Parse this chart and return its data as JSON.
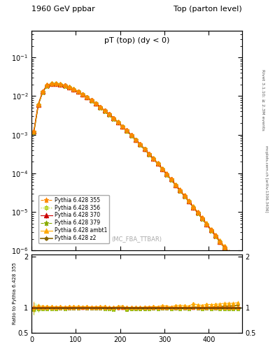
{
  "title_left": "1960 GeV ppbar",
  "title_right": "Top (parton level)",
  "plot_title": "pT (top) (dy < 0)",
  "watermark": "(MC_FBA_TTBAR)",
  "right_label": "Rivet 3.1.10; ≥ 2.3M events",
  "arxiv_label": "mcplots.cern.ch [arXiv:1306.3436]",
  "ylabel_ratio": "Ratio to Pythia 6.428 355",
  "xlim": [
    0,
    475
  ],
  "ylim_main": [
    1e-06,
    0.5
  ],
  "ylim_ratio": [
    0.5,
    2.05
  ],
  "series": [
    {
      "label": "Pythia 6.428 355",
      "color": "#ff8800",
      "marker": "*",
      "linestyle": "--",
      "linewidth": 0.8,
      "x": [
        5,
        15,
        25,
        35,
        45,
        55,
        65,
        75,
        85,
        95,
        105,
        115,
        125,
        135,
        145,
        155,
        165,
        175,
        185,
        195,
        205,
        215,
        225,
        235,
        245,
        255,
        265,
        275,
        285,
        295,
        305,
        315,
        325,
        335,
        345,
        355,
        365,
        375,
        385,
        395,
        405,
        415,
        425,
        435,
        445,
        455,
        465
      ],
      "y": [
        0.0012,
        0.006,
        0.013,
        0.019,
        0.021,
        0.021,
        0.02,
        0.019,
        0.017,
        0.015,
        0.013,
        0.011,
        0.0093,
        0.0078,
        0.0064,
        0.0052,
        0.0042,
        0.0034,
        0.0027,
        0.0021,
        0.0016,
        0.0013,
        0.00099,
        0.00075,
        0.00057,
        0.00043,
        0.00032,
        0.00024,
        0.00018,
        0.00013,
        9.5e-05,
        7e-05,
        5e-05,
        3.6e-05,
        2.6e-05,
        1.9e-05,
        1.3e-05,
        9.5e-06,
        6.8e-06,
        4.8e-06,
        3.4e-06,
        2.4e-06,
        1.7e-06,
        1.2e-06,
        8.5e-07,
        6e-07,
        4.2e-07
      ],
      "yerr": [
        8e-05,
        0.0002,
        0.0003,
        0.0004,
        0.0004,
        0.0004,
        0.0003,
        0.0003,
        0.0003,
        0.0002,
        0.0002,
        0.0002,
        0.00015,
        0.00012,
        0.0001,
        8e-05,
        7e-05,
        5e-05,
        4e-05,
        3.5e-05,
        2.5e-05,
        2e-05,
        1.5e-05,
        1.2e-05,
        9e-06,
        7e-06,
        5e-06,
        4e-06,
        3e-06,
        2.2e-06,
        1.6e-06,
        1.2e-06,
        8e-07,
        6e-07,
        4.5e-07,
        3.3e-07,
        2.5e-07,
        1.8e-07,
        1.3e-07,
        9e-08,
        6.5e-08,
        4.7e-08,
        3.4e-08,
        2.5e-08,
        1.8e-08,
        1.3e-08,
        9e-09
      ]
    },
    {
      "label": "Pythia 6.428 356",
      "color": "#aacc00",
      "marker": "s",
      "linestyle": ":",
      "linewidth": 0.8,
      "x": [
        5,
        15,
        25,
        35,
        45,
        55,
        65,
        75,
        85,
        95,
        105,
        115,
        125,
        135,
        145,
        155,
        165,
        175,
        185,
        195,
        205,
        215,
        225,
        235,
        245,
        255,
        265,
        275,
        285,
        295,
        305,
        315,
        325,
        335,
        345,
        355,
        365,
        375,
        385,
        395,
        405,
        415,
        425,
        435,
        445,
        455,
        465
      ],
      "y": [
        0.00115,
        0.0058,
        0.0126,
        0.0185,
        0.0205,
        0.0204,
        0.0196,
        0.0185,
        0.0168,
        0.0148,
        0.0128,
        0.0109,
        0.0092,
        0.0077,
        0.0063,
        0.0051,
        0.0041,
        0.0033,
        0.0026,
        0.0021,
        0.0016,
        0.00125,
        0.00096,
        0.00073,
        0.00055,
        0.00042,
        0.00031,
        0.000235,
        0.000175,
        0.000128,
        9.3e-05,
        6.8e-05,
        4.9e-05,
        3.5e-05,
        2.55e-05,
        1.85e-05,
        1.3e-05,
        9.3e-06,
        6.6e-06,
        4.7e-06,
        3.3e-06,
        2.35e-06,
        1.65e-06,
        1.17e-06,
        8.3e-07,
        5.8e-07,
        4.1e-07
      ],
      "yerr": [
        8e-05,
        0.0002,
        0.0003,
        0.0004,
        0.0004,
        0.0004,
        0.0003,
        0.0003,
        0.0003,
        0.0002,
        0.0002,
        0.0002,
        0.00015,
        0.00012,
        0.0001,
        8e-05,
        7e-05,
        5e-05,
        4e-05,
        3.5e-05,
        2.5e-05,
        2e-05,
        1.5e-05,
        1.2e-05,
        9e-06,
        7e-06,
        5e-06,
        4e-06,
        3e-06,
        2.2e-06,
        1.6e-06,
        1.2e-06,
        8e-07,
        6e-07,
        4.5e-07,
        3.3e-07,
        2.5e-07,
        1.8e-07,
        1.3e-07,
        9e-08,
        6.5e-08,
        4.7e-08,
        3.4e-08,
        2.5e-08,
        1.8e-08,
        1.3e-08,
        9e-09
      ]
    },
    {
      "label": "Pythia 6.428 370",
      "color": "#cc0000",
      "marker": "^",
      "linestyle": "-",
      "linewidth": 0.8,
      "x": [
        5,
        15,
        25,
        35,
        45,
        55,
        65,
        75,
        85,
        95,
        105,
        115,
        125,
        135,
        145,
        155,
        165,
        175,
        185,
        195,
        205,
        215,
        225,
        235,
        245,
        255,
        265,
        275,
        285,
        295,
        305,
        315,
        325,
        335,
        345,
        355,
        365,
        375,
        385,
        395,
        405,
        415,
        425,
        435,
        445,
        455,
        465
      ],
      "y": [
        0.0012,
        0.006,
        0.013,
        0.019,
        0.021,
        0.021,
        0.02,
        0.019,
        0.017,
        0.015,
        0.013,
        0.011,
        0.0093,
        0.0078,
        0.0064,
        0.0052,
        0.0042,
        0.0034,
        0.0027,
        0.0021,
        0.0016,
        0.0013,
        0.00099,
        0.00075,
        0.00057,
        0.00043,
        0.00032,
        0.00024,
        0.00018,
        0.00013,
        9.5e-05,
        7e-05,
        5e-05,
        3.6e-05,
        2.6e-05,
        1.9e-05,
        1.3e-05,
        9.5e-06,
        6.8e-06,
        4.8e-06,
        3.4e-06,
        2.4e-06,
        1.7e-06,
        1.2e-06,
        8.5e-07,
        6e-07,
        4.2e-07
      ],
      "yerr": [
        8e-05,
        0.0002,
        0.0003,
        0.0004,
        0.0004,
        0.0004,
        0.0003,
        0.0003,
        0.0003,
        0.0002,
        0.0002,
        0.0002,
        0.00015,
        0.00012,
        0.0001,
        8e-05,
        7e-05,
        5e-05,
        4e-05,
        3.5e-05,
        2.5e-05,
        2e-05,
        1.5e-05,
        1.2e-05,
        9e-06,
        7e-06,
        5e-06,
        4e-06,
        3e-06,
        2.2e-06,
        1.6e-06,
        1.2e-06,
        8e-07,
        6e-07,
        4.5e-07,
        3.3e-07,
        2.5e-07,
        1.8e-07,
        1.3e-07,
        9e-08,
        6.5e-08,
        4.7e-08,
        3.4e-08,
        2.5e-08,
        1.8e-08,
        1.3e-08,
        9e-09
      ]
    },
    {
      "label": "Pythia 6.428 379",
      "color": "#88aa00",
      "marker": "*",
      "linestyle": "--",
      "linewidth": 0.8,
      "x": [
        5,
        15,
        25,
        35,
        45,
        55,
        65,
        75,
        85,
        95,
        105,
        115,
        125,
        135,
        145,
        155,
        165,
        175,
        185,
        195,
        205,
        215,
        225,
        235,
        245,
        255,
        265,
        275,
        285,
        295,
        305,
        315,
        325,
        335,
        345,
        355,
        365,
        375,
        385,
        395,
        405,
        415,
        425,
        435,
        445,
        455,
        465
      ],
      "y": [
        0.00115,
        0.0058,
        0.0126,
        0.0185,
        0.0205,
        0.0204,
        0.0196,
        0.0185,
        0.0168,
        0.0148,
        0.0128,
        0.0109,
        0.0092,
        0.0077,
        0.0063,
        0.0051,
        0.0041,
        0.0033,
        0.0026,
        0.0021,
        0.0016,
        0.00125,
        0.00096,
        0.00073,
        0.00055,
        0.00042,
        0.00031,
        0.000235,
        0.000175,
        0.000128,
        9.3e-05,
        6.8e-05,
        4.9e-05,
        3.5e-05,
        2.55e-05,
        1.85e-05,
        1.3e-05,
        9.3e-06,
        6.6e-06,
        4.7e-06,
        3.3e-06,
        2.35e-06,
        1.65e-06,
        1.17e-06,
        8.3e-07,
        5.8e-07,
        4.1e-07
      ],
      "yerr": [
        8e-05,
        0.0002,
        0.0003,
        0.0004,
        0.0004,
        0.0004,
        0.0003,
        0.0003,
        0.0003,
        0.0002,
        0.0002,
        0.0002,
        0.00015,
        0.00012,
        0.0001,
        8e-05,
        7e-05,
        5e-05,
        4e-05,
        3.5e-05,
        2.5e-05,
        2e-05,
        1.5e-05,
        1.2e-05,
        9e-06,
        7e-06,
        5e-06,
        4e-06,
        3e-06,
        2.2e-06,
        1.6e-06,
        1.2e-06,
        8e-07,
        6e-07,
        4.5e-07,
        3.3e-07,
        2.5e-07,
        1.8e-07,
        1.3e-07,
        9e-08,
        6.5e-08,
        4.7e-08,
        3.4e-08,
        2.5e-08,
        1.8e-08,
        1.3e-08,
        9e-09
      ]
    },
    {
      "label": "Pythia 6.428 ambt1",
      "color": "#ffaa00",
      "marker": "^",
      "linestyle": "-",
      "linewidth": 0.8,
      "x": [
        5,
        15,
        25,
        35,
        45,
        55,
        65,
        75,
        85,
        95,
        105,
        115,
        125,
        135,
        145,
        155,
        165,
        175,
        185,
        195,
        205,
        215,
        225,
        235,
        245,
        255,
        265,
        275,
        285,
        295,
        305,
        315,
        325,
        335,
        345,
        355,
        365,
        375,
        385,
        395,
        405,
        415,
        425,
        435,
        445,
        455,
        465
      ],
      "y": [
        0.00122,
        0.0062,
        0.0133,
        0.0194,
        0.0214,
        0.0213,
        0.0204,
        0.0192,
        0.0174,
        0.0153,
        0.0133,
        0.0112,
        0.0095,
        0.0079,
        0.0065,
        0.0053,
        0.0043,
        0.0034,
        0.0027,
        0.00215,
        0.00165,
        0.00128,
        0.00099,
        0.00075,
        0.00057,
        0.000435,
        0.000325,
        0.000245,
        0.000183,
        0.000135,
        9.8e-05,
        7.1e-05,
        5.2e-05,
        3.75e-05,
        2.7e-05,
        1.95e-05,
        1.4e-05,
        1e-05,
        7.1e-06,
        5.1e-06,
        3.6e-06,
        2.55e-06,
        1.82e-06,
        1.3e-06,
        9.2e-07,
        6.5e-07,
        4.6e-07
      ],
      "yerr": [
        9e-05,
        0.00021,
        0.00032,
        0.00042,
        0.00042,
        0.00042,
        0.00032,
        0.00032,
        0.00032,
        0.00021,
        0.00021,
        0.00021,
        0.00016,
        0.00013,
        0.00011,
        8.5e-05,
        7.5e-05,
        5.5e-05,
        4.5e-05,
        3.8e-05,
        2.8e-05,
        2.2e-05,
        1.7e-05,
        1.3e-05,
        1e-05,
        7.5e-06,
        5.5e-06,
        4.3e-06,
        3.2e-06,
        2.4e-06,
        1.75e-06,
        1.3e-06,
        9e-07,
        6.5e-07,
        4.8e-07,
        3.5e-07,
        2.7e-07,
        1.95e-07,
        1.4e-07,
        1e-07,
        7.2e-08,
        5.2e-08,
        3.7e-08,
        2.7e-08,
        1.95e-08,
        1.4e-08,
        1e-08
      ]
    },
    {
      "label": "Pythia 6.428 z2",
      "color": "#886600",
      "marker": "o",
      "linestyle": "-",
      "linewidth": 1.2,
      "x": [
        5,
        15,
        25,
        35,
        45,
        55,
        65,
        75,
        85,
        95,
        105,
        115,
        125,
        135,
        145,
        155,
        165,
        175,
        185,
        195,
        205,
        215,
        225,
        235,
        245,
        255,
        265,
        275,
        285,
        295,
        305,
        315,
        325,
        335,
        345,
        355,
        365,
        375,
        385,
        395,
        405,
        415,
        425,
        435,
        445,
        455,
        465
      ],
      "y": [
        0.00118,
        0.006,
        0.0129,
        0.0188,
        0.0208,
        0.0208,
        0.0199,
        0.0188,
        0.017,
        0.015,
        0.013,
        0.011,
        0.0093,
        0.0078,
        0.0064,
        0.0052,
        0.0042,
        0.0034,
        0.0027,
        0.00208,
        0.0016,
        0.00124,
        0.00096,
        0.00073,
        0.00055,
        0.000418,
        0.000313,
        0.000235,
        0.000176,
        0.000129,
        9.4e-05,
        6.85e-05,
        4.95e-05,
        3.58e-05,
        2.58e-05,
        1.87e-05,
        1.32e-05,
        9.5e-06,
        6.75e-06,
        4.83e-06,
        3.43e-06,
        2.44e-06,
        1.73e-06,
        1.23e-06,
        8.7e-07,
        6.2e-07,
        4.4e-07
      ],
      "yerr": [
        8.5e-05,
        0.000205,
        0.00031,
        0.00041,
        0.00041,
        0.00041,
        0.00031,
        0.00031,
        0.00031,
        0.000205,
        0.000205,
        0.000205,
        0.000155,
        0.000125,
        0.000105,
        8.3e-05,
        7.2e-05,
        5.2e-05,
        4.2e-05,
        3.6e-05,
        2.7e-05,
        2.1e-05,
        1.6e-05,
        1.25e-05,
        9.5e-06,
        7.2e-06,
        5.3e-06,
        4.1e-06,
        3.1e-06,
        2.3e-06,
        1.7e-06,
        1.25e-06,
        8.5e-07,
        6.2e-07,
        4.6e-07,
        3.4e-07,
        2.6e-07,
        1.88e-07,
        1.35e-07,
        9.7e-08,
        6.9e-08,
        5e-08,
        3.6e-08,
        2.6e-08,
        1.88e-08,
        1.35e-08,
        9.7e-09
      ]
    }
  ],
  "ratio_band_color": "#ccff99",
  "ratio_band_alpha": 0.5,
  "bg_color": "#ffffff"
}
